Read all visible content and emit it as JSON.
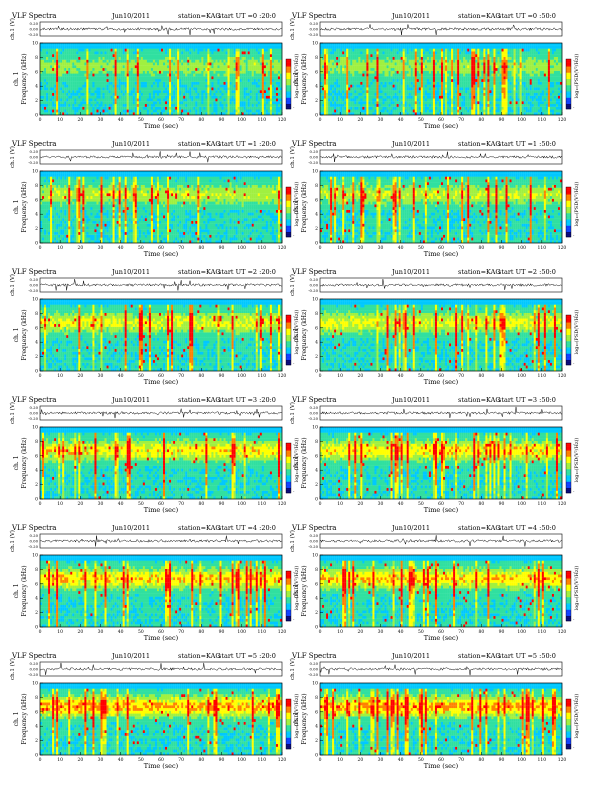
{
  "page": {
    "background": "#ffffff"
  },
  "colormap": {
    "stops": [
      "#08087a",
      "#1040ff",
      "#00c8ff",
      "#30e0a0",
      "#a0f040",
      "#ffff00",
      "#ff8000",
      "#ff0000",
      "#8b0000"
    ]
  },
  "chart_data": [
    {
      "type": "heatmap",
      "title": "VLF Spectra",
      "date": "Jun10/2011",
      "station": "station=KAG",
      "start": "start UT =0 :20:0",
      "channel_label": "ch. 1",
      "waveform_ylabel": "ch.1 (V)",
      "waveform_ticks": [
        "0.20",
        "0.00",
        "-0.20"
      ],
      "ylabel": "Frequency (kHz)",
      "xlabel": "Time (sec)",
      "x_ticks": [
        "0",
        "10",
        "20",
        "30",
        "40",
        "50",
        "60",
        "70",
        "80",
        "90",
        "100",
        "110",
        "120"
      ],
      "y_ticks": [
        "0",
        "2",
        "4",
        "6",
        "8",
        "10"
      ],
      "xlim": [
        0,
        120
      ],
      "ylim": [
        0,
        10
      ],
      "colorbar_label": "log₁₀(PSD(V²/Hz))",
      "colorbar_ticks": [
        "-",
        "-"
      ],
      "activity": 0.35
    },
    {
      "type": "heatmap",
      "title": "VLF Spectra",
      "date": "Jun10/2011",
      "station": "station=KAG",
      "start": "start UT =0 :50:0",
      "channel_label": "ch. 1",
      "waveform_ylabel": "ch.1 (V)",
      "waveform_ticks": [
        "0.20",
        "0.00",
        "-0.20"
      ],
      "ylabel": "Frequency (kHz)",
      "xlabel": "Time (sec)",
      "x_ticks": [
        "0",
        "10",
        "20",
        "30",
        "40",
        "50",
        "60",
        "70",
        "80",
        "90",
        "100",
        "110",
        "120"
      ],
      "y_ticks": [
        "0",
        "2",
        "4",
        "6",
        "8",
        "10"
      ],
      "xlim": [
        0,
        120
      ],
      "ylim": [
        0,
        10
      ],
      "colorbar_label": "log₁₀(PSD(V²/Hz))",
      "colorbar_ticks": [
        "-",
        "-"
      ],
      "activity": 0.35
    },
    {
      "type": "heatmap",
      "title": "VLF Spectra",
      "date": "Jun10/2011",
      "station": "station=KAG",
      "start": "start UT =1 :20:0",
      "channel_label": "ch. 1",
      "waveform_ylabel": "ch.1 (V)",
      "waveform_ticks": [
        "0.20",
        "0.00",
        "-0.20"
      ],
      "ylabel": "Frequency (kHz)",
      "xlabel": "Time (sec)",
      "x_ticks": [
        "0",
        "10",
        "20",
        "30",
        "40",
        "50",
        "60",
        "70",
        "80",
        "90",
        "100",
        "110",
        "120"
      ],
      "y_ticks": [
        "0",
        "2",
        "4",
        "6",
        "8",
        "10"
      ],
      "xlim": [
        0,
        120
      ],
      "ylim": [
        0,
        10
      ],
      "colorbar_label": "log₁₀(PSD(V²/Hz))",
      "colorbar_ticks": [
        "-",
        "-"
      ],
      "activity": 0.45
    },
    {
      "type": "heatmap",
      "title": "VLF Spectra",
      "date": "Jun10/2011",
      "station": "station=KAG",
      "start": "start UT =1 :50:0",
      "channel_label": "ch. 1",
      "waveform_ylabel": "ch.1 (V)",
      "waveform_ticks": [
        "0.20",
        "0.00",
        "-0.20"
      ],
      "ylabel": "Frequency (kHz)",
      "xlabel": "Time (sec)",
      "x_ticks": [
        "0",
        "10",
        "20",
        "30",
        "40",
        "50",
        "60",
        "70",
        "80",
        "90",
        "100",
        "110",
        "120"
      ],
      "y_ticks": [
        "0",
        "2",
        "4",
        "6",
        "8",
        "10"
      ],
      "xlim": [
        0,
        120
      ],
      "ylim": [
        0,
        10
      ],
      "colorbar_label": "log₁₀(PSD(V²/Hz))",
      "colorbar_ticks": [
        "-",
        "-"
      ],
      "activity": 0.45
    },
    {
      "type": "heatmap",
      "title": "VLF Spectra",
      "date": "Jun10/2011",
      "station": "station=KAG",
      "start": "start UT =2 :20:0",
      "channel_label": "ch. 1",
      "waveform_ylabel": "ch.1 (V)",
      "waveform_ticks": [
        "0.20",
        "0.00",
        "-0.20"
      ],
      "ylabel": "Frequency (kHz)",
      "xlabel": "Time (sec)",
      "x_ticks": [
        "0",
        "10",
        "20",
        "30",
        "40",
        "50",
        "60",
        "70",
        "80",
        "90",
        "100",
        "110",
        "120"
      ],
      "y_ticks": [
        "0",
        "2",
        "4",
        "6",
        "8",
        "10"
      ],
      "xlim": [
        0,
        120
      ],
      "ylim": [
        0,
        10
      ],
      "colorbar_label": "log₁₀(PSD(V²/Hz))",
      "colorbar_ticks": [
        "-",
        "-"
      ],
      "activity": 0.55
    },
    {
      "type": "heatmap",
      "title": "VLF Spectra",
      "date": "Jun10/2011",
      "station": "station=KAG",
      "start": "start UT =2 :50:0",
      "channel_label": "ch. 1",
      "waveform_ylabel": "ch.1 (V)",
      "waveform_ticks": [
        "0.20",
        "0.00",
        "-0.20"
      ],
      "ylabel": "Frequency (kHz)",
      "xlabel": "Time (sec)",
      "x_ticks": [
        "0",
        "10",
        "20",
        "30",
        "40",
        "50",
        "60",
        "70",
        "80",
        "90",
        "100",
        "110",
        "120"
      ],
      "y_ticks": [
        "0",
        "2",
        "4",
        "6",
        "8",
        "10"
      ],
      "xlim": [
        0,
        120
      ],
      "ylim": [
        0,
        10
      ],
      "colorbar_label": "log₁₀(PSD(V²/Hz))",
      "colorbar_ticks": [
        "-",
        "-"
      ],
      "activity": 0.55
    },
    {
      "type": "heatmap",
      "title": "VLF Spectra",
      "date": "Jun10/2011",
      "station": "station=KAG",
      "start": "start UT =3 :20:0",
      "channel_label": "ch. 1",
      "waveform_ylabel": "ch.1 (V)",
      "waveform_ticks": [
        "0.20",
        "0.00",
        "-0.20"
      ],
      "ylabel": "Frequency (kHz)",
      "xlabel": "Time (sec)",
      "x_ticks": [
        "0",
        "10",
        "20",
        "30",
        "40",
        "50",
        "60",
        "70",
        "80",
        "90",
        "100",
        "110",
        "120"
      ],
      "y_ticks": [
        "0",
        "2",
        "4",
        "6",
        "8",
        "10"
      ],
      "xlim": [
        0,
        120
      ],
      "ylim": [
        0,
        10
      ],
      "colorbar_label": "log₁₀(PSD(V²/Hz))",
      "colorbar_ticks": [
        "-",
        "-"
      ],
      "activity": 0.65
    },
    {
      "type": "heatmap",
      "title": "VLF Spectra",
      "date": "Jun10/2011",
      "station": "station=KAG",
      "start": "start UT =3 :50:0",
      "channel_label": "ch. 1",
      "waveform_ylabel": "ch.1 (V)",
      "waveform_ticks": [
        "0.20",
        "0.00",
        "-0.20"
      ],
      "ylabel": "Frequency (kHz)",
      "xlabel": "Time (sec)",
      "x_ticks": [
        "0",
        "10",
        "20",
        "30",
        "40",
        "50",
        "60",
        "70",
        "80",
        "90",
        "100",
        "110",
        "120"
      ],
      "y_ticks": [
        "0",
        "2",
        "4",
        "6",
        "8",
        "10"
      ],
      "xlim": [
        0,
        120
      ],
      "ylim": [
        0,
        10
      ],
      "colorbar_label": "log₁₀(PSD(V²/Hz))",
      "colorbar_ticks": [
        "-",
        "-"
      ],
      "activity": 0.65
    },
    {
      "type": "heatmap",
      "title": "VLF Spectra",
      "date": "Jun10/2011",
      "station": "station=KAG",
      "start": "start UT =4 :20:0",
      "channel_label": "ch. 1",
      "waveform_ylabel": "ch.1 (V)",
      "waveform_ticks": [
        "0.20",
        "0.00",
        "-0.20"
      ],
      "ylabel": "Frequency (kHz)",
      "xlabel": "Time (sec)",
      "x_ticks": [
        "0",
        "10",
        "20",
        "30",
        "40",
        "50",
        "60",
        "70",
        "80",
        "90",
        "100",
        "110",
        "120"
      ],
      "y_ticks": [
        "0",
        "2",
        "4",
        "6",
        "8",
        "10"
      ],
      "xlim": [
        0,
        120
      ],
      "ylim": [
        0,
        10
      ],
      "colorbar_label": "log₁₀(PSD(V²/Hz))",
      "colorbar_ticks": [
        "-",
        "-"
      ],
      "activity": 0.72
    },
    {
      "type": "heatmap",
      "title": "VLF Spectra",
      "date": "Jun10/2011",
      "station": "station=KAG",
      "start": "start UT =4 :50:0",
      "channel_label": "ch. 1",
      "waveform_ylabel": "ch.1 (V)",
      "waveform_ticks": [
        "0.20",
        "0.00",
        "-0.20"
      ],
      "ylabel": "Frequency (kHz)",
      "xlabel": "Time (sec)",
      "x_ticks": [
        "0",
        "10",
        "20",
        "30",
        "40",
        "50",
        "60",
        "70",
        "80",
        "90",
        "100",
        "110",
        "120"
      ],
      "y_ticks": [
        "0",
        "2",
        "4",
        "6",
        "8",
        "10"
      ],
      "xlim": [
        0,
        120
      ],
      "ylim": [
        0,
        10
      ],
      "colorbar_label": "log₁₀(PSD(V²/Hz))",
      "colorbar_ticks": [
        "-",
        "-"
      ],
      "activity": 0.72
    },
    {
      "type": "heatmap",
      "title": "VLF Spectra",
      "date": "Jun10/2011",
      "station": "station=KAG",
      "start": "start UT =5 :20:0",
      "channel_label": "ch. 1",
      "waveform_ylabel": "ch.1 (V)",
      "waveform_ticks": [
        "0.20",
        "0.00",
        "-0.20"
      ],
      "ylabel": "Frequency (kHz)",
      "xlabel": "Time (sec)",
      "x_ticks": [
        "0",
        "10",
        "20",
        "30",
        "40",
        "50",
        "60",
        "70",
        "80",
        "90",
        "100",
        "110",
        "120"
      ],
      "y_ticks": [
        "0",
        "2",
        "4",
        "6",
        "8",
        "10"
      ],
      "xlim": [
        0,
        120
      ],
      "ylim": [
        0,
        10
      ],
      "colorbar_label": "log₁₀(PSD(V²/Hz))",
      "colorbar_ticks": [
        "-",
        "-"
      ],
      "activity": 0.82
    },
    {
      "type": "heatmap",
      "title": "VLF Spectra",
      "date": "Jun10/2011",
      "station": "station=KAG",
      "start": "start UT =5 :50:0",
      "channel_label": "ch. 1",
      "waveform_ylabel": "ch.1 (V)",
      "waveform_ticks": [
        "0.20",
        "0.00",
        "-0.20"
      ],
      "ylabel": "Frequency (kHz)",
      "xlabel": "Time (sec)",
      "x_ticks": [
        "0",
        "10",
        "20",
        "30",
        "40",
        "50",
        "60",
        "70",
        "80",
        "90",
        "100",
        "110",
        "120"
      ],
      "y_ticks": [
        "0",
        "2",
        "4",
        "6",
        "8",
        "10"
      ],
      "xlim": [
        0,
        120
      ],
      "ylim": [
        0,
        10
      ],
      "colorbar_label": "log₁₀(PSD(V²/Hz))",
      "colorbar_ticks": [
        "-",
        "-"
      ],
      "activity": 0.82
    }
  ]
}
